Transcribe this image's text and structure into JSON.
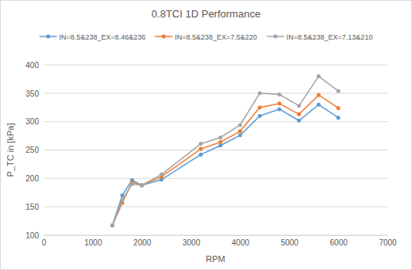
{
  "chart_data": {
    "type": "line",
    "title": "0.8TCI 1D Performance",
    "x_label": "RPM",
    "y_label": "P_TC in [kPa]",
    "x": [
      1400,
      1600,
      1800,
      2000,
      2400,
      3200,
      3600,
      4000,
      4400,
      4800,
      5200,
      5600,
      6000
    ],
    "series": [
      {
        "name": "IN=8.5&238_EX=8.46&236",
        "color": "#5b9bd5",
        "marker": "circle",
        "line_style": "solid",
        "values": [
          117,
          170,
          197,
          188,
          198,
          242,
          258,
          276,
          310,
          322,
          302,
          330,
          307
        ]
      },
      {
        "name": "IN=8.5&238_EX=7.5&220",
        "color": "#ed7d31",
        "marker": "circle",
        "line_style": "solid",
        "values": [
          117,
          157,
          193,
          188,
          203,
          252,
          264,
          283,
          325,
          332,
          313,
          347,
          324
        ]
      },
      {
        "name": "IN=8.5&238_EX=7.13&210",
        "color": "#a5a5a5",
        "marker": "circle",
        "line_style": "solid",
        "values": [
          117,
          162,
          190,
          188,
          207,
          261,
          272,
          294,
          350,
          348,
          328,
          380,
          354
        ]
      }
    ],
    "xlim": [
      0,
      7000
    ],
    "xticks": [
      0,
      1000,
      2000,
      3000,
      4000,
      5000,
      6000,
      7000
    ],
    "ylim": [
      100,
      400
    ],
    "yticks": [
      100,
      150,
      200,
      250,
      300,
      350,
      400
    ],
    "grid": true,
    "legend": "top"
  }
}
